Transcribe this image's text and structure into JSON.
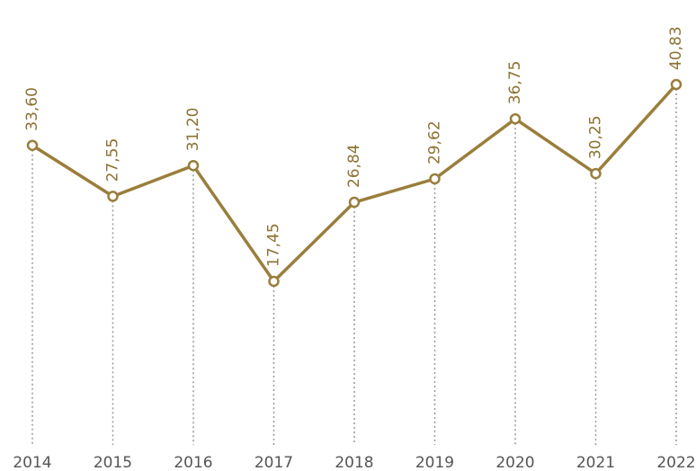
{
  "chart_data": {
    "type": "line",
    "categories": [
      "2014",
      "2015",
      "2016",
      "2017",
      "2018",
      "2019",
      "2020",
      "2021",
      "2022"
    ],
    "values": [
      33.6,
      27.55,
      31.2,
      17.45,
      26.84,
      29.62,
      36.75,
      30.25,
      40.83
    ],
    "value_labels": [
      "33,60",
      "27,55",
      "31,20",
      "17,45",
      "26,84",
      "29,62",
      "36,75",
      "30,25",
      "40,83"
    ],
    "color": "#9a7e3c"
  }
}
